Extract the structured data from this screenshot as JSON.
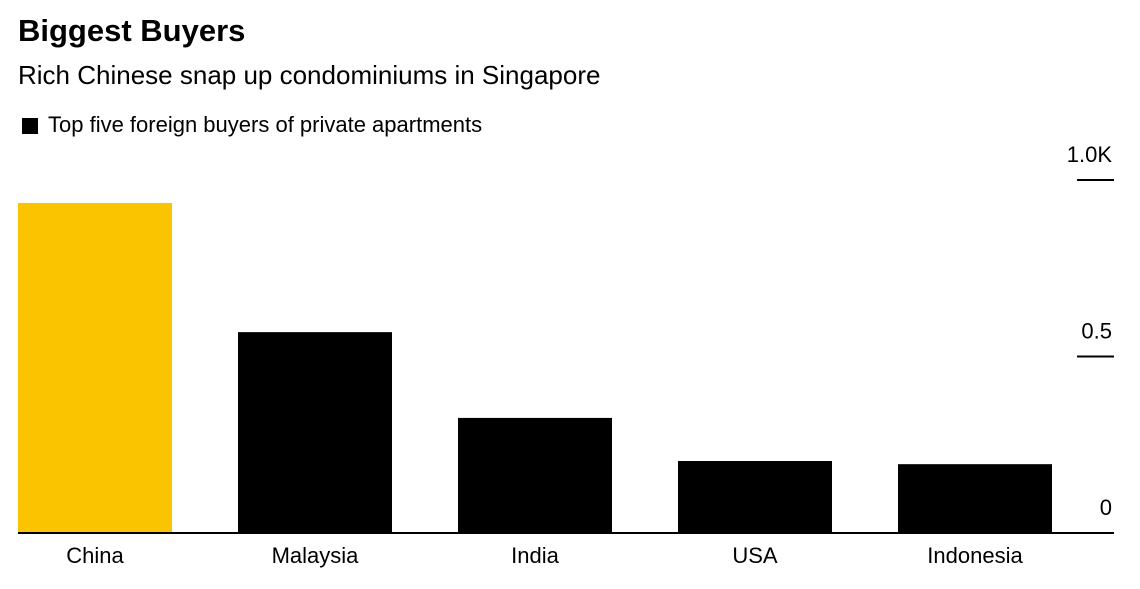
{
  "chart_data": {
    "type": "bar",
    "title": "Biggest Buyers",
    "subtitle": "Rich Chinese snap up condominiums in Singapore",
    "categories": [
      "China",
      "Malaysia",
      "India",
      "USA",
      "Indonesia"
    ],
    "series": [
      {
        "name": "Top five foreign buyers of private apartments",
        "color": "#000000",
        "values": [
          0.935,
          0.569,
          0.326,
          0.204,
          0.195
        ],
        "colors": [
          "#fbc400",
          "#000000",
          "#000000",
          "#000000",
          "#000000"
        ]
      }
    ],
    "ylim": [
      0,
      1
    ],
    "yticks": [
      0,
      0.5,
      {
        "value": 1,
        "label": "1.0K"
      }
    ],
    "y_axis_side": "right"
  }
}
